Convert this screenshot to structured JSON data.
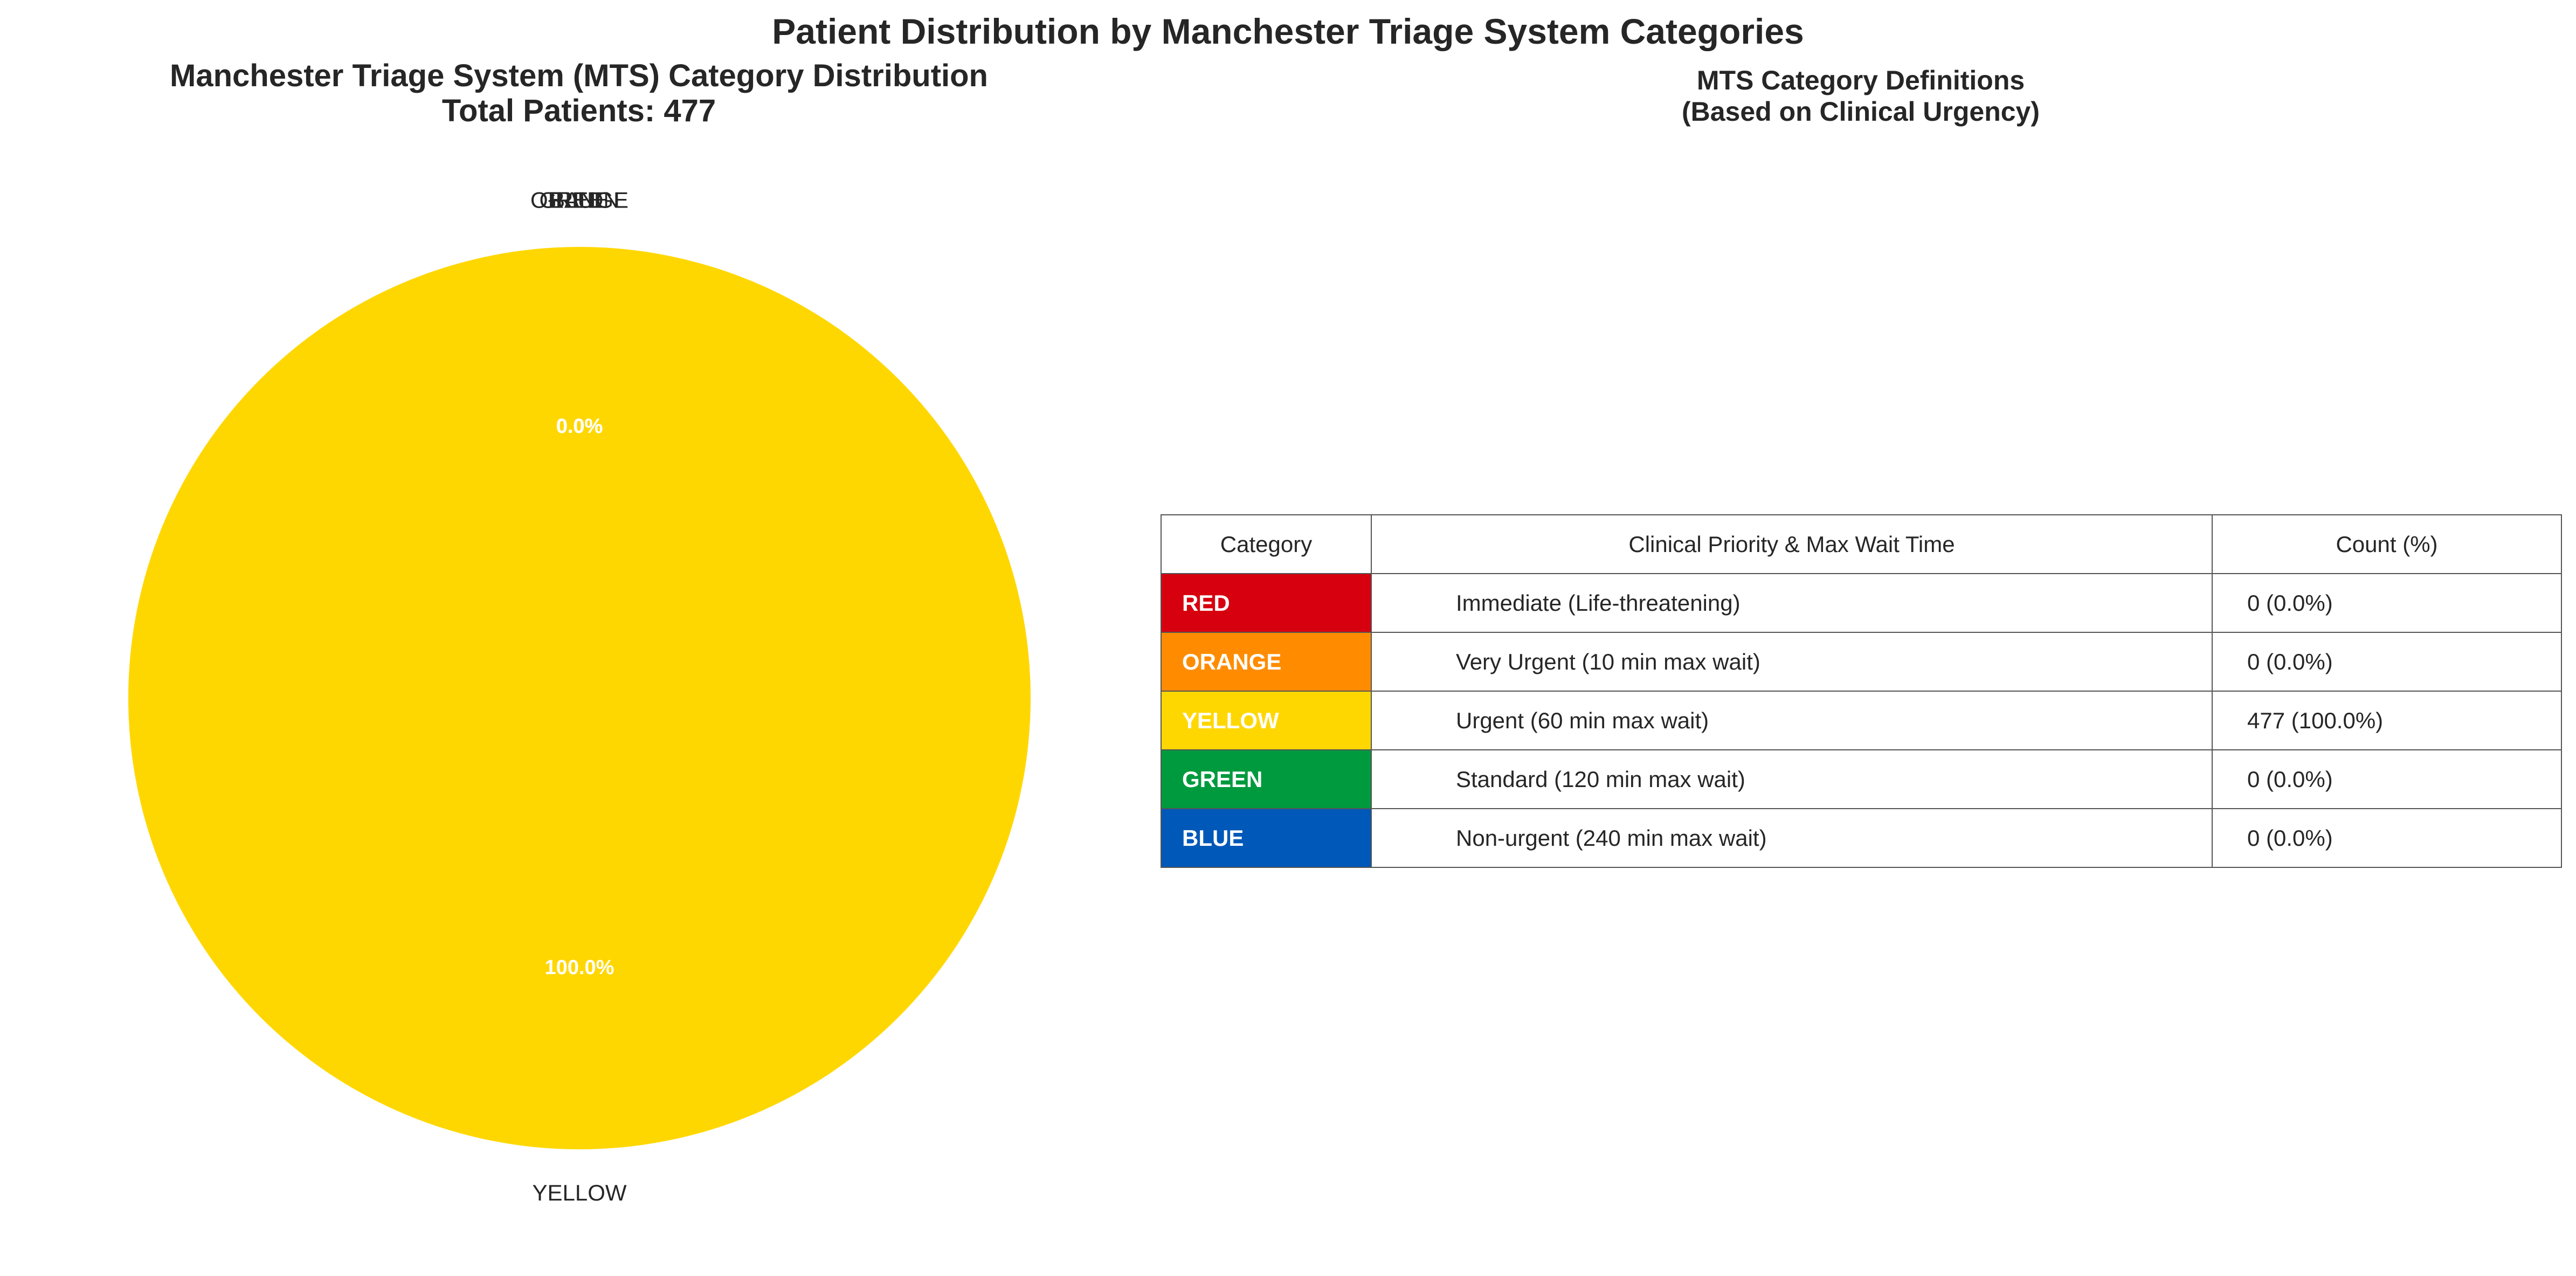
{
  "page": {
    "title": "Patient Distribution by Manchester Triage System Categories"
  },
  "chart_data": [
    {
      "type": "pie",
      "title_lines": [
        "Manchester Triage System (MTS) Category Distribution",
        "Total Patients: 477"
      ],
      "categories": [
        "RED",
        "ORANGE",
        "YELLOW",
        "GREEN",
        "BLUE"
      ],
      "values": [
        0,
        0,
        477,
        0,
        0
      ],
      "percent_labels": [
        "0.0%",
        "0.0%",
        "100.0%",
        "0.0%",
        "0.0%"
      ],
      "colors": [
        "#d7000f",
        "#ff8c00",
        "#ffd700",
        "#009a3e",
        "#0058b8"
      ],
      "percent_label_color": "#ffffff",
      "start_angle_deg": 90,
      "direction": "counterclockwise"
    },
    {
      "type": "table",
      "title_lines": [
        "MTS Category Definitions",
        "(Based on Clinical Urgency)"
      ],
      "columns": [
        "Category",
        "Clinical Priority & Max Wait Time",
        "Count (%)"
      ],
      "rows": [
        {
          "category": "RED",
          "description": "Immediate (Life-threatening)",
          "count": "0 (0.0%)",
          "color": "#d7000f"
        },
        {
          "category": "ORANGE",
          "description": "Very Urgent (10 min max wait)",
          "count": "0 (0.0%)",
          "color": "#ff8c00"
        },
        {
          "category": "YELLOW",
          "description": "Urgent (60 min max wait)",
          "count": "477 (100.0%)",
          "color": "#ffd700"
        },
        {
          "category": "GREEN",
          "description": "Standard (120 min max wait)",
          "count": "0 (0.0%)",
          "color": "#009a3e"
        },
        {
          "category": "BLUE",
          "description": "Non-urgent (240 min max wait)",
          "count": "0 (0.0%)",
          "color": "#0058b8"
        }
      ]
    }
  ]
}
